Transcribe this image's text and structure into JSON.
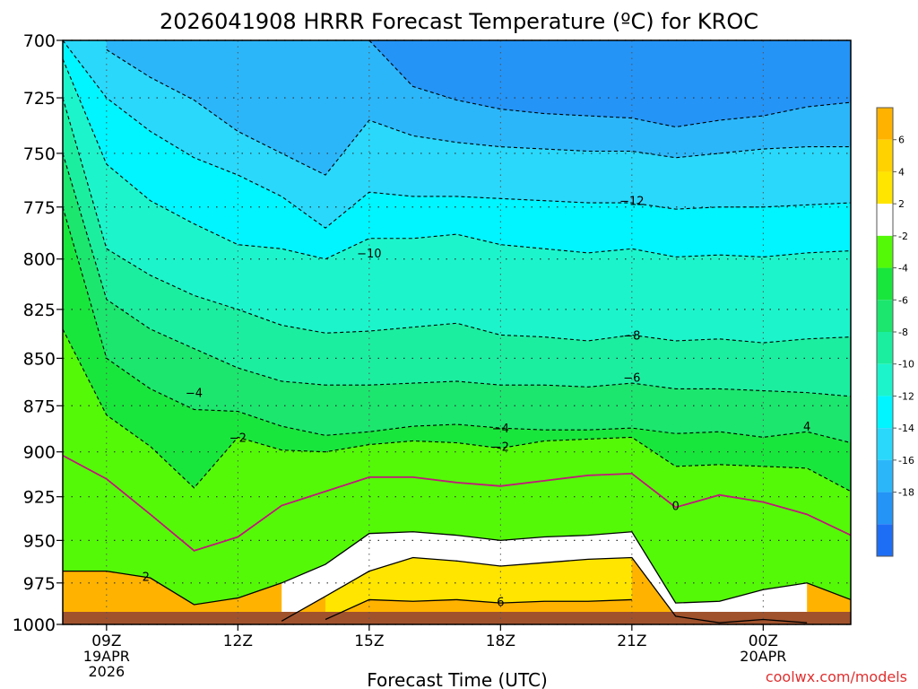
{
  "chart_data": {
    "type": "heatmap",
    "title": "2026041908 HRRR Forecast Temperature (ºC) for KROC",
    "xlabel": "Forecast Time (UTC)",
    "ylabel": "",
    "credit": "coolwx.com/models",
    "x_range": [
      8,
      26
    ],
    "y_range": [
      700,
      1000
    ],
    "y_scale": "log",
    "grid": true,
    "x_ticks": [
      {
        "x": 9,
        "label": "09Z",
        "sub": [
          "19APR",
          "2026"
        ]
      },
      {
        "x": 12,
        "label": "12Z",
        "sub": []
      },
      {
        "x": 15,
        "label": "15Z",
        "sub": []
      },
      {
        "x": 18,
        "label": "18Z",
        "sub": []
      },
      {
        "x": 21,
        "label": "21Z",
        "sub": []
      },
      {
        "x": 24,
        "label": "00Z",
        "sub": [
          "20APR"
        ]
      }
    ],
    "y_ticks": [
      700,
      725,
      750,
      775,
      800,
      825,
      850,
      875,
      900,
      925,
      950,
      975,
      1000
    ],
    "fill_levels": [
      -18,
      -16,
      -14,
      -12,
      -10,
      -8,
      -6,
      -4,
      -2,
      2,
      4,
      6
    ],
    "fill_colors": [
      "#1e6ef5",
      "#2494f7",
      "#2cb6fa",
      "#2ad8fb",
      "#00f5ff",
      "#1cf5cc",
      "#1ceea0",
      "#1ce66e",
      "#19e63c",
      "#54f908",
      "#ffffff",
      "#ffe500",
      "#ffd200",
      "#ffb300"
    ],
    "colorbar_labels": [
      "6",
      "4",
      "2",
      "-2",
      "-4",
      "-6",
      "-8",
      "-10",
      "-12",
      "-14",
      "-16",
      "-18"
    ],
    "sample_x": [
      8,
      9,
      10,
      11,
      12,
      13,
      14,
      15,
      16,
      17,
      18,
      19,
      20,
      21,
      22,
      23,
      24,
      25,
      26
    ],
    "isotherms": [
      {
        "t": -16,
        "p": [
          null,
          null,
          null,
          null,
          null,
          null,
          null,
          700,
          720,
          726,
          730,
          732,
          733,
          734,
          738,
          735,
          733,
          729,
          727
        ]
      },
      {
        "t": -14,
        "p": [
          null,
          704,
          716,
          726,
          740,
          750,
          760,
          735,
          742,
          745,
          747,
          748,
          749,
          749,
          752,
          750,
          748,
          747,
          747
        ]
      },
      {
        "t": -12,
        "p": [
          700,
          725,
          740,
          752,
          760,
          770,
          785,
          768,
          770,
          770,
          771,
          772,
          773,
          773,
          776,
          775,
          775,
          774,
          773
        ]
      },
      {
        "t": -10,
        "p": [
          708,
          755,
          772,
          783,
          793,
          795,
          800,
          790,
          790,
          788,
          793,
          795,
          797,
          795,
          799,
          798,
          799,
          797,
          796
        ]
      },
      {
        "t": -8,
        "p": [
          725,
          795,
          808,
          818,
          825,
          833,
          837,
          836,
          834,
          832,
          838,
          839,
          841,
          838,
          841,
          840,
          842,
          840,
          839
        ]
      },
      {
        "t": -6,
        "p": [
          750,
          820,
          835,
          845,
          855,
          862,
          864,
          864,
          863,
          862,
          864,
          864,
          865,
          863,
          866,
          866,
          867,
          868,
          870
        ]
      },
      {
        "t": -4,
        "p": [
          775,
          850,
          866,
          877,
          878,
          886,
          891,
          889,
          886,
          885,
          887,
          888,
          888,
          887,
          890,
          889,
          892,
          889,
          895
        ]
      },
      {
        "t": -2,
        "p": [
          835,
          880,
          897,
          920,
          892,
          899,
          900,
          896,
          894,
          895,
          898,
          894,
          893,
          892,
          908,
          907,
          908,
          909,
          922
        ]
      },
      {
        "t": 0,
        "p": [
          902,
          915,
          935,
          956,
          948,
          930,
          922,
          914,
          914,
          917,
          919,
          916,
          913,
          912,
          931,
          924,
          928,
          935,
          947
        ]
      },
      {
        "t": 2,
        "p": [
          968,
          968,
          972,
          988,
          984,
          975,
          964,
          946,
          945,
          947,
          950,
          948,
          947,
          945,
          987,
          986,
          979,
          975,
          985
        ]
      },
      {
        "t": 4,
        "p": [
          null,
          null,
          null,
          null,
          null,
          998,
          983,
          968,
          960,
          962,
          965,
          963,
          961,
          960,
          995,
          999,
          997,
          999,
          null
        ]
      },
      {
        "t": 6,
        "p": [
          null,
          null,
          null,
          null,
          null,
          null,
          997,
          985,
          986,
          985,
          987,
          986,
          986,
          985,
          null,
          null,
          null,
          null,
          null
        ]
      }
    ],
    "line_labels": [
      {
        "text": "0",
        "x": 22.0,
        "p": 930
      },
      {
        "text": "2",
        "x": 9.9,
        "p": 971
      },
      {
        "text": "6",
        "x": 18.0,
        "p": 986
      },
      {
        "text": "−2",
        "x": 12.0,
        "p": 892
      },
      {
        "text": "−2",
        "x": 18.0,
        "p": 897
      },
      {
        "text": "−4",
        "x": 11.0,
        "p": 868
      },
      {
        "text": "−4",
        "x": 18.0,
        "p": 887
      },
      {
        "text": "4",
        "x": 25.0,
        "p": 886
      },
      {
        "text": "−6",
        "x": 21.0,
        "p": 860
      },
      {
        "text": "−8",
        "x": 21.0,
        "p": 838
      },
      {
        "text": "−10",
        "x": 15.0,
        "p": 797
      },
      {
        "text": "−12",
        "x": 21.0,
        "p": 772
      }
    ]
  }
}
